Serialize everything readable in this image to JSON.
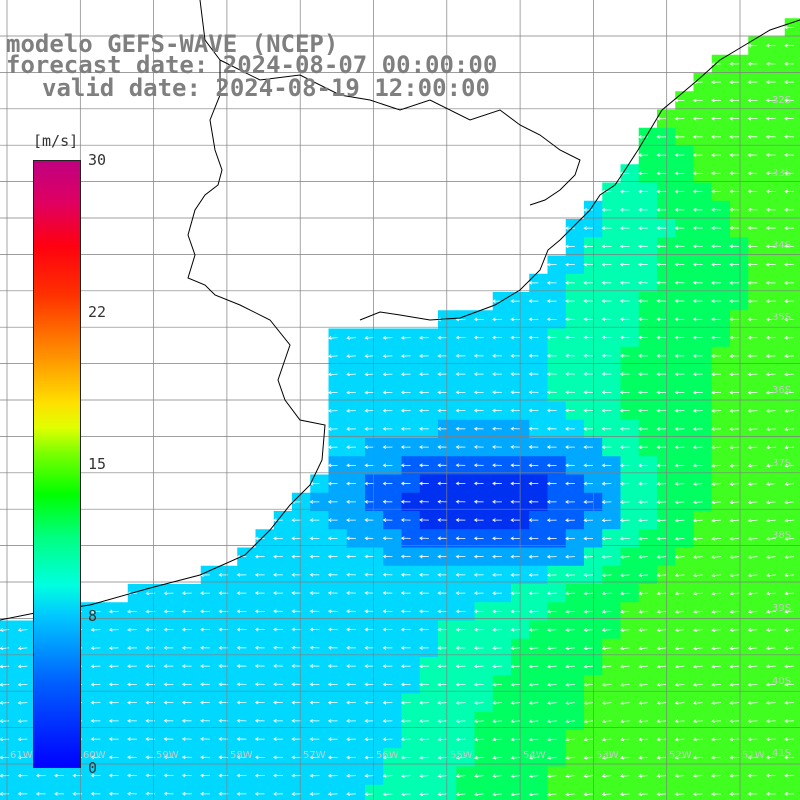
{
  "header": {
    "line1": "modelo GEFS-WAVE (NCEP)",
    "line2": "forecast date: 2024-08-07 00:00:00",
    "line3": "valid date: 2024-08-19 12:00:00"
  },
  "colorbar": {
    "unit": "[m/s]",
    "ticks": [
      "30",
      "22",
      "15",
      "8",
      "0"
    ],
    "colors": [
      "#0000ff",
      "#00c8ff",
      "#00ffe0",
      "#00ff00",
      "#ffe000",
      "#ff3000",
      "#c00080"
    ]
  },
  "lat_labels": [
    "32S",
    "33S",
    "34S",
    "35S",
    "36S",
    "37S",
    "38S",
    "39S",
    "40S",
    "41S"
  ],
  "lon_labels": [
    "61W",
    "60W",
    "59W",
    "58W",
    "57W",
    "56W",
    "55W",
    "54W",
    "53W",
    "52W",
    "51W"
  ],
  "field": {
    "variable": "wind speed and direction",
    "ocean_color_low": "#0040ff",
    "ocean_color_mid": "#00d8ff",
    "ocean_color_high": "#40ff20",
    "arrow_color": "#ffffff",
    "coastline_color": "#000000",
    "grid_color": "#7f7f7f"
  }
}
